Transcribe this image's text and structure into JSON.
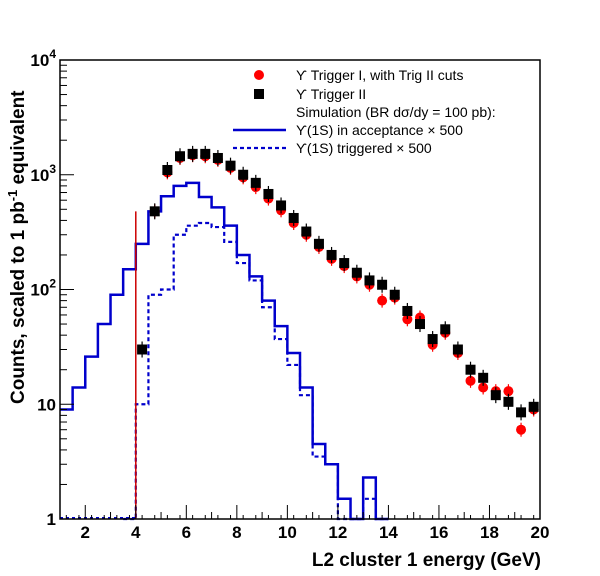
{
  "chart_data": {
    "type": "scatter",
    "title": "",
    "xlabel": "L2 cluster 1 energy (GeV)",
    "ylabel_main": "Counts, scaled to 1 pb",
    "ylabel_sup": "-1",
    "ylabel_tail": " equivalent",
    "xlim": [
      1,
      20
    ],
    "ylim": [
      1,
      10000
    ],
    "yscale": "log",
    "x_ticks": [
      "2",
      "4",
      "6",
      "8",
      "10",
      "12",
      "14",
      "16",
      "18",
      "20"
    ],
    "y_ticks": [
      {
        "base": "1",
        "exp": ""
      },
      {
        "base": "10",
        "exp": ""
      },
      {
        "base": "10",
        "exp": "2"
      },
      {
        "base": "10",
        "exp": "3"
      },
      {
        "base": "10",
        "exp": "4"
      }
    ],
    "legend_position": "top-right",
    "legend": {
      "red_dots": "ϒ Trigger I, with Trig II cuts",
      "black_squares": "ϒ Trigger II",
      "simulation_header": "Simulation (BR dσ/dy = 100 pb):",
      "sim_acceptance": "ϒ(1S) in acceptance × 500",
      "sim_triggered": "ϒ(1S) triggered × 500"
    },
    "colors": {
      "red": "#ff0000",
      "black": "#000000",
      "blue": "#0000cc",
      "threshold_line": "#cc0000"
    },
    "threshold_x": 4,
    "series": [
      {
        "name": "ϒ Trigger I, with Trig II cuts",
        "x": [
          4.75,
          5.25,
          5.75,
          6.25,
          6.75,
          7.25,
          7.75,
          8.25,
          8.75,
          9.25,
          9.75,
          10.25,
          10.75,
          11.25,
          11.75,
          12.25,
          12.75,
          13.25,
          13.75,
          14.25,
          14.75,
          15.25,
          15.75,
          16.25,
          16.75,
          17.25,
          17.75,
          18.25,
          18.75,
          19.25,
          19.75
        ],
        "y": [
          480,
          1050,
          1400,
          1480,
          1450,
          1350,
          1150,
          950,
          780,
          620,
          490,
          380,
          300,
          235,
          185,
          160,
          130,
          110,
          80,
          85,
          55,
          57,
          33,
          42,
          28,
          16,
          14,
          13,
          13,
          6,
          9
        ]
      },
      {
        "name": "ϒ Trigger II",
        "x": [
          4.25,
          4.75,
          5.25,
          5.75,
          6.25,
          6.75,
          7.25,
          7.75,
          8.25,
          8.75,
          9.25,
          9.75,
          10.25,
          10.75,
          11.25,
          11.75,
          12.25,
          12.75,
          13.25,
          13.75,
          14.25,
          14.75,
          15.25,
          15.75,
          16.25,
          16.75,
          17.25,
          17.75,
          18.25,
          18.75,
          19.25,
          19.75
        ],
        "y": [
          30,
          480,
          1100,
          1450,
          1520,
          1520,
          1400,
          1200,
          1000,
          850,
          680,
          540,
          420,
          320,
          250,
          200,
          170,
          140,
          120,
          110,
          90,
          65,
          50,
          37,
          45,
          30,
          20,
          17,
          12,
          10.5,
          8.5,
          9.5
        ]
      },
      {
        "name": "ϒ(1S) in acceptance × 500",
        "style": "solid-step",
        "edges": [
          1,
          1.5,
          2,
          2.5,
          3,
          3.5,
          4,
          4.5,
          5,
          5.5,
          6,
          6.5,
          7,
          7.5,
          8,
          8.5,
          9,
          9.5,
          10,
          10.5,
          11,
          11.5,
          12,
          12.5,
          13,
          13.5,
          14
        ],
        "values": [
          9,
          14,
          26,
          50,
          90,
          150,
          250,
          480,
          650,
          800,
          850,
          640,
          520,
          360,
          200,
          130,
          80,
          48,
          28,
          14,
          4.5,
          3,
          1.5,
          1,
          2.3,
          1
        ]
      },
      {
        "name": "ϒ(1S) triggered × 500",
        "style": "dashed-step",
        "edges": [
          3.5,
          4,
          4.5,
          5,
          5.5,
          6,
          6.5,
          7,
          7.5,
          8,
          8.5,
          9,
          9.5,
          10,
          10.5,
          11,
          11.5,
          12,
          12.5,
          13,
          13.5,
          14
        ],
        "values": [
          1,
          10,
          90,
          100,
          300,
          360,
          380,
          350,
          260,
          170,
          120,
          70,
          37,
          22,
          12,
          3.5,
          3,
          1,
          1,
          1.5,
          1
        ]
      }
    ]
  }
}
